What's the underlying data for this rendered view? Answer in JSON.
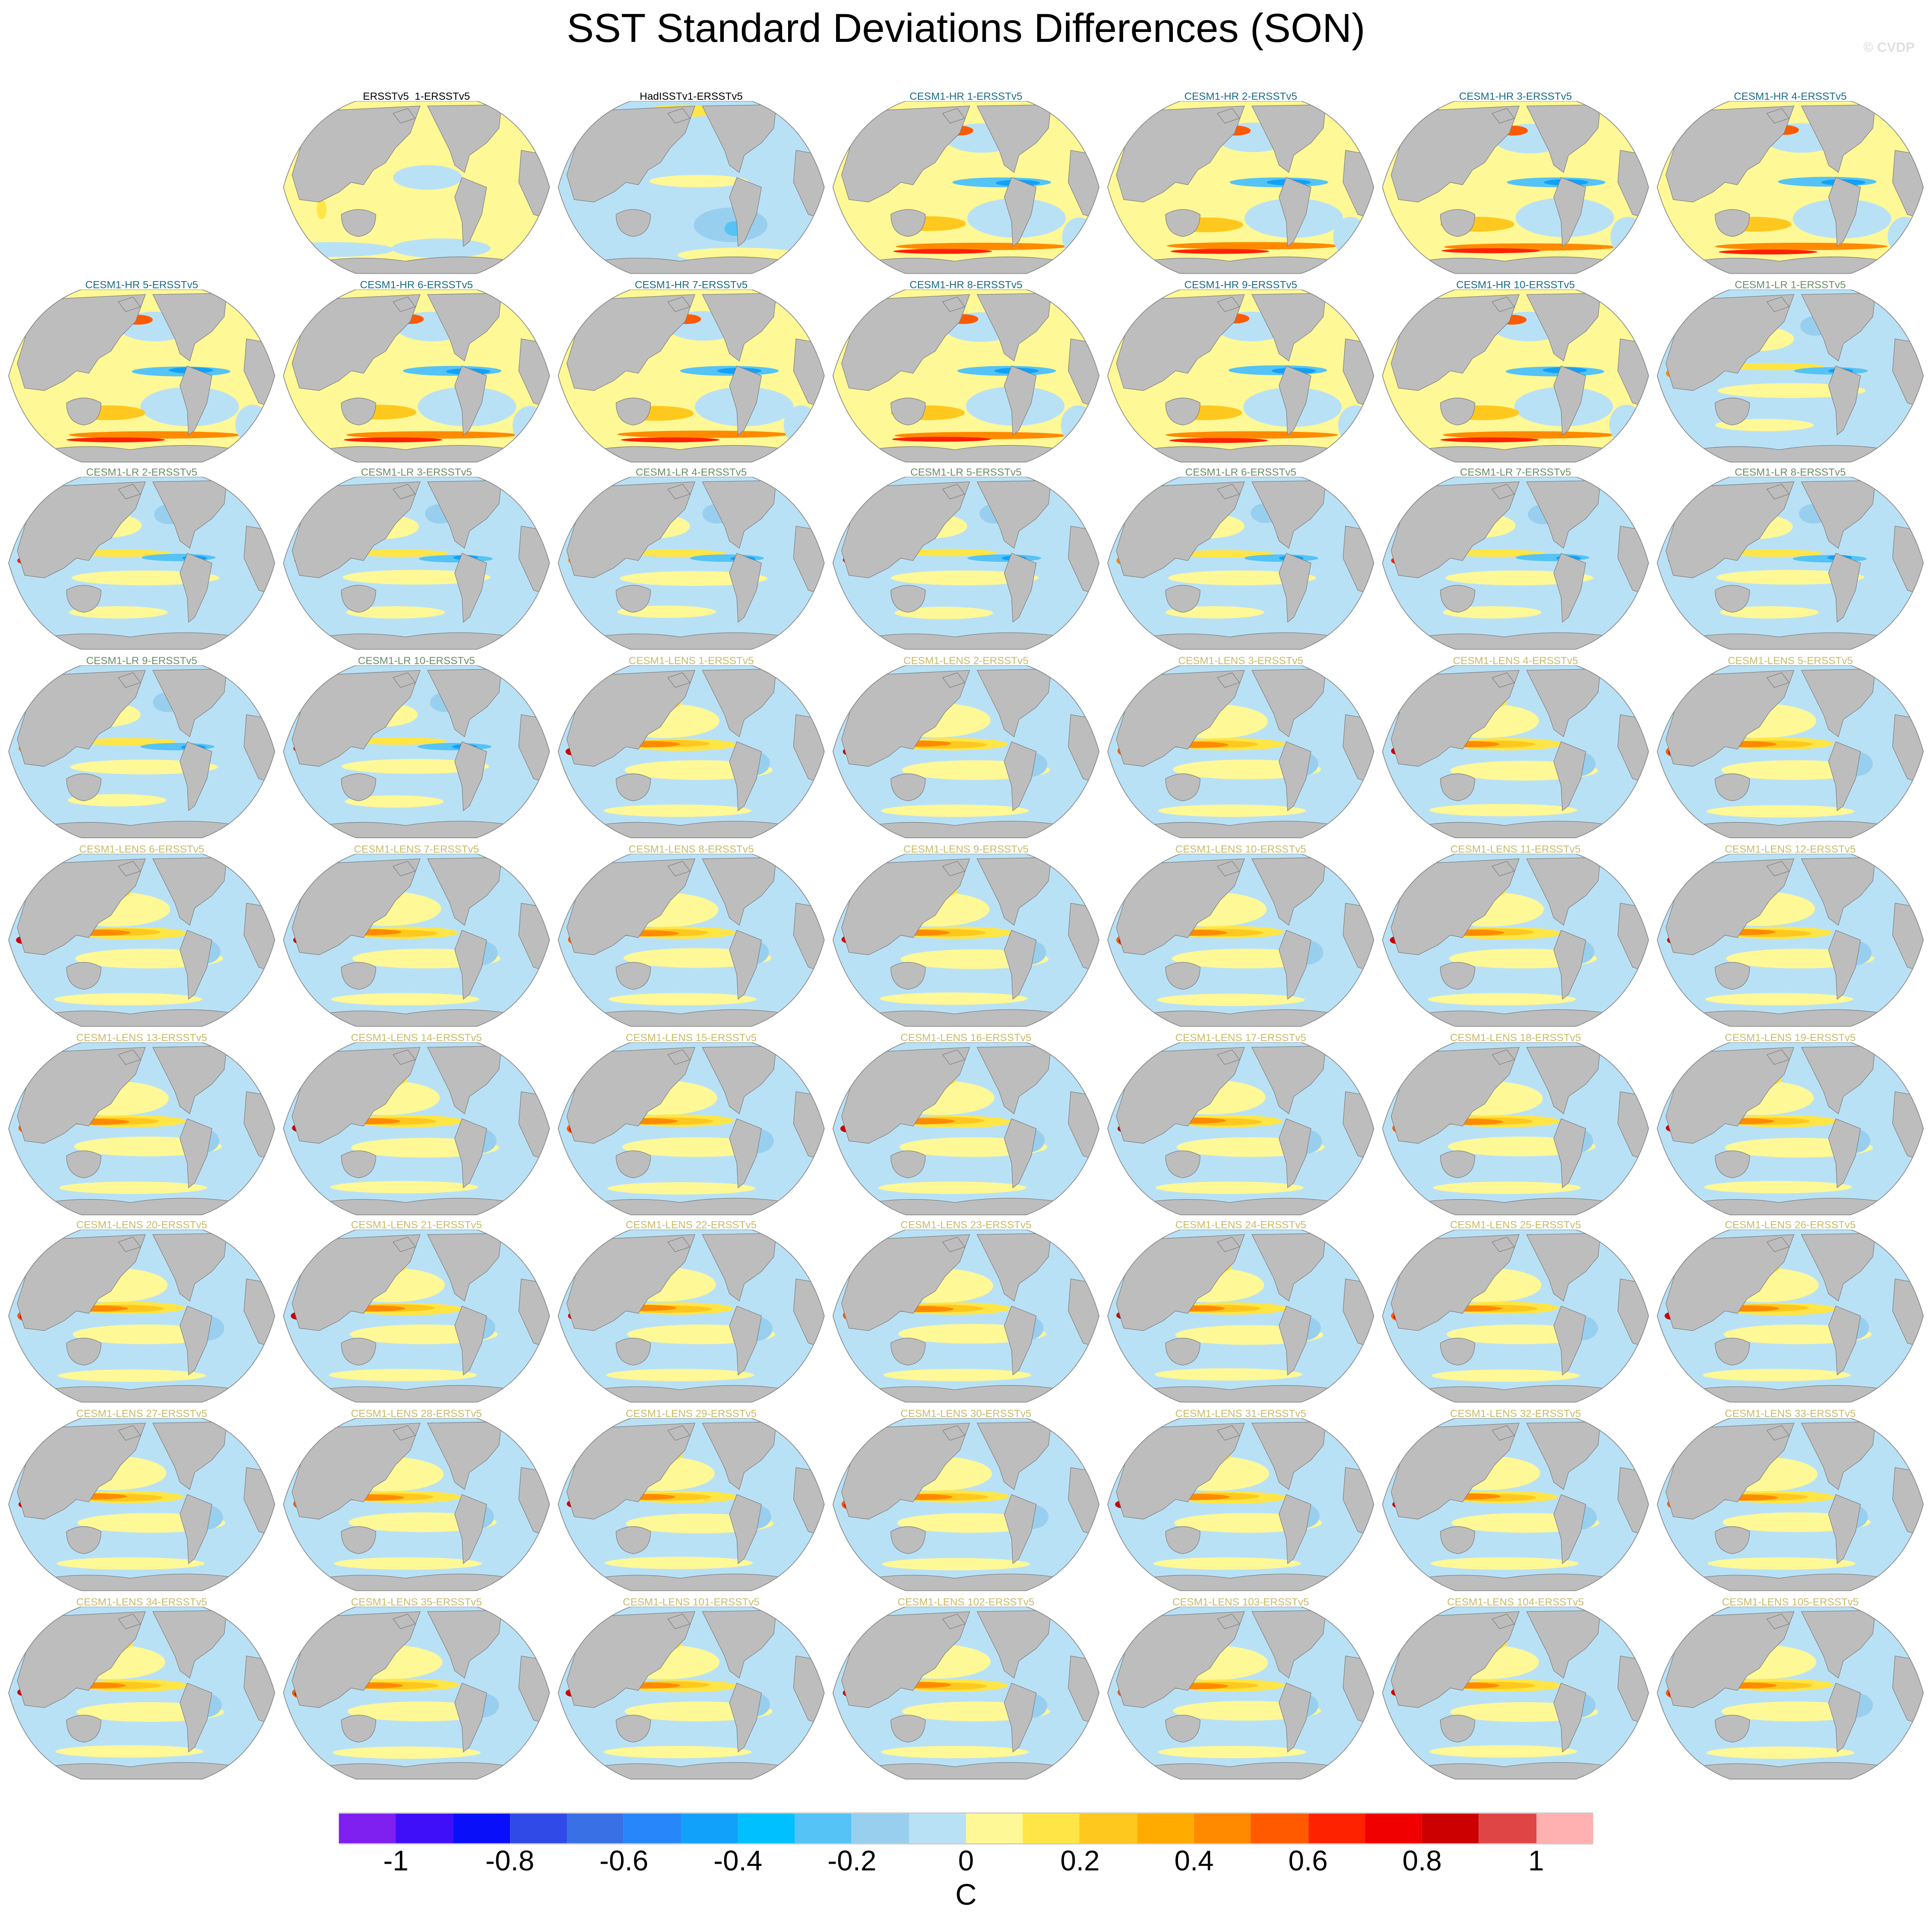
{
  "title": "SST Standard Deviations Differences (SON)",
  "watermark": "© CVDP",
  "group_colors": {
    "obs": "#000000",
    "hr": "#1b6b86",
    "lr": "#6b8e6b",
    "lens": "#c8bb6a"
  },
  "panels": [
    {
      "title": "ERSSTv5_1-ERSSTv5",
      "group": "obs",
      "style": "obs1"
    },
    {
      "title": "HadISSTv1-ERSSTv5",
      "group": "obs",
      "style": "obs2"
    },
    {
      "title": "CESM1-HR 1-ERSSTv5",
      "group": "hr",
      "style": "hr"
    },
    {
      "title": "CESM1-HR 2-ERSSTv5",
      "group": "hr",
      "style": "hr"
    },
    {
      "title": "CESM1-HR 3-ERSSTv5",
      "group": "hr",
      "style": "hr"
    },
    {
      "title": "CESM1-HR 4-ERSSTv5",
      "group": "hr",
      "style": "hr"
    },
    {
      "title": "CESM1-HR 5-ERSSTv5",
      "group": "hr",
      "style": "hr"
    },
    {
      "title": "CESM1-HR 6-ERSSTv5",
      "group": "hr",
      "style": "hr"
    },
    {
      "title": "CESM1-HR 7-ERSSTv5",
      "group": "hr",
      "style": "hr"
    },
    {
      "title": "CESM1-HR 8-ERSSTv5",
      "group": "hr",
      "style": "hr"
    },
    {
      "title": "CESM1-HR 9-ERSSTv5",
      "group": "hr",
      "style": "hr"
    },
    {
      "title": "CESM1-HR 10-ERSSTv5",
      "group": "hr",
      "style": "hr"
    },
    {
      "title": "CESM1-LR 1-ERSSTv5",
      "group": "lr",
      "style": "lr"
    },
    {
      "title": "CESM1-LR 2-ERSSTv5",
      "group": "lr",
      "style": "lr"
    },
    {
      "title": "CESM1-LR 3-ERSSTv5",
      "group": "lr",
      "style": "lr"
    },
    {
      "title": "CESM1-LR 4-ERSSTv5",
      "group": "lr",
      "style": "lr"
    },
    {
      "title": "CESM1-LR 5-ERSSTv5",
      "group": "lr",
      "style": "lr"
    },
    {
      "title": "CESM1-LR 6-ERSSTv5",
      "group": "lr",
      "style": "lr"
    },
    {
      "title": "CESM1-LR 7-ERSSTv5",
      "group": "lr",
      "style": "lr"
    },
    {
      "title": "CESM1-LR 8-ERSSTv5",
      "group": "lr",
      "style": "lr"
    },
    {
      "title": "CESM1-LR 9-ERSSTv5",
      "group": "lr",
      "style": "lr"
    },
    {
      "title": "CESM1-LR 10-ERSSTv5",
      "group": "lr",
      "style": "lr"
    },
    {
      "title": "CESM1-LENS 1-ERSSTv5",
      "group": "lens",
      "style": "lens"
    },
    {
      "title": "CESM1-LENS 2-ERSSTv5",
      "group": "lens",
      "style": "lens"
    },
    {
      "title": "CESM1-LENS 3-ERSSTv5",
      "group": "lens",
      "style": "lens"
    },
    {
      "title": "CESM1-LENS 4-ERSSTv5",
      "group": "lens",
      "style": "lens"
    },
    {
      "title": "CESM1-LENS 5-ERSSTv5",
      "group": "lens",
      "style": "lens"
    },
    {
      "title": "CESM1-LENS 6-ERSSTv5",
      "group": "lens",
      "style": "lens"
    },
    {
      "title": "CESM1-LENS 7-ERSSTv5",
      "group": "lens",
      "style": "lens"
    },
    {
      "title": "CESM1-LENS 8-ERSSTv5",
      "group": "lens",
      "style": "lens"
    },
    {
      "title": "CESM1-LENS 9-ERSSTv5",
      "group": "lens",
      "style": "lens"
    },
    {
      "title": "CESM1-LENS 10-ERSSTv5",
      "group": "lens",
      "style": "lens"
    },
    {
      "title": "CESM1-LENS 11-ERSSTv5",
      "group": "lens",
      "style": "lens"
    },
    {
      "title": "CESM1-LENS 12-ERSSTv5",
      "group": "lens",
      "style": "lens"
    },
    {
      "title": "CESM1-LENS 13-ERSSTv5",
      "group": "lens",
      "style": "lens"
    },
    {
      "title": "CESM1-LENS 14-ERSSTv5",
      "group": "lens",
      "style": "lens"
    },
    {
      "title": "CESM1-LENS 15-ERSSTv5",
      "group": "lens",
      "style": "lens"
    },
    {
      "title": "CESM1-LENS 16-ERSSTv5",
      "group": "lens",
      "style": "lens"
    },
    {
      "title": "CESM1-LENS 17-ERSSTv5",
      "group": "lens",
      "style": "lens"
    },
    {
      "title": "CESM1-LENS 18-ERSSTv5",
      "group": "lens",
      "style": "lens"
    },
    {
      "title": "CESM1-LENS 19-ERSSTv5",
      "group": "lens",
      "style": "lens"
    },
    {
      "title": "CESM1-LENS 20-ERSSTv5",
      "group": "lens",
      "style": "lens"
    },
    {
      "title": "CESM1-LENS 21-ERSSTv5",
      "group": "lens",
      "style": "lens"
    },
    {
      "title": "CESM1-LENS 22-ERSSTv5",
      "group": "lens",
      "style": "lens"
    },
    {
      "title": "CESM1-LENS 23-ERSSTv5",
      "group": "lens",
      "style": "lens"
    },
    {
      "title": "CESM1-LENS 24-ERSSTv5",
      "group": "lens",
      "style": "lens"
    },
    {
      "title": "CESM1-LENS 25-ERSSTv5",
      "group": "lens",
      "style": "lens"
    },
    {
      "title": "CESM1-LENS 26-ERSSTv5",
      "group": "lens",
      "style": "lens"
    },
    {
      "title": "CESM1-LENS 27-ERSSTv5",
      "group": "lens",
      "style": "lens"
    },
    {
      "title": "CESM1-LENS 28-ERSSTv5",
      "group": "lens",
      "style": "lens"
    },
    {
      "title": "CESM1-LENS 29-ERSSTv5",
      "group": "lens",
      "style": "lens"
    },
    {
      "title": "CESM1-LENS 30-ERSSTv5",
      "group": "lens",
      "style": "lens"
    },
    {
      "title": "CESM1-LENS 31-ERSSTv5",
      "group": "lens",
      "style": "lens"
    },
    {
      "title": "CESM1-LENS 32-ERSSTv5",
      "group": "lens",
      "style": "lens"
    },
    {
      "title": "CESM1-LENS 33-ERSSTv5",
      "group": "lens",
      "style": "lens"
    },
    {
      "title": "CESM1-LENS 34-ERSSTv5",
      "group": "lens",
      "style": "lens"
    },
    {
      "title": "CESM1-LENS 35-ERSSTv5",
      "group": "lens",
      "style": "lens"
    },
    {
      "title": "CESM1-LENS 101-ERSSTv5",
      "group": "lens",
      "style": "lens"
    },
    {
      "title": "CESM1-LENS 102-ERSSTv5",
      "group": "lens",
      "style": "lens"
    },
    {
      "title": "CESM1-LENS 103-ERSSTv5",
      "group": "lens",
      "style": "lens"
    },
    {
      "title": "CESM1-LENS 104-ERSSTv5",
      "group": "lens",
      "style": "lens"
    },
    {
      "title": "CESM1-LENS 105-ERSSTv5",
      "group": "lens",
      "style": "lens"
    }
  ],
  "chart_data": {
    "type": "heatmap",
    "title": "SST Standard Deviations Differences (SON)",
    "layout": "small multiples, 7 columns x 9 rows, first cell empty",
    "colorbar": {
      "label": "C",
      "ticks": [
        "-1",
        "-0.8",
        "-0.6",
        "-0.4",
        "-0.2",
        "0",
        "0.2",
        "0.4",
        "0.6",
        "0.8",
        "1"
      ],
      "range": [
        -1.1,
        1.1
      ],
      "colors": [
        "#7f1ff0",
        "#3f0ffa",
        "#0a0ffa",
        "#2f4ae6",
        "#3a70e6",
        "#2686fa",
        "#12a1fa",
        "#00c0ff",
        "#55c3f5",
        "#99cfee",
        "#b9e1f6",
        "#fff896",
        "#ffe646",
        "#ffc81e",
        "#ffab00",
        "#ff8a00",
        "#ff5a00",
        "#ff2200",
        "#f00000",
        "#cd0000",
        "#e04545",
        "#ffb0b0"
      ]
    }
  }
}
